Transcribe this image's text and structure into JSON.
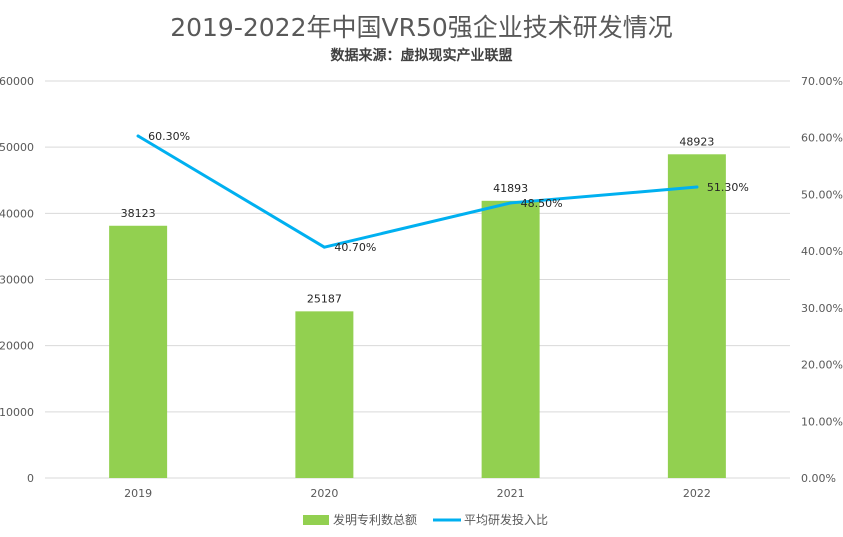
{
  "chart_data": {
    "type": "bar",
    "title": "2019-2022年中国VR50强企业技术研发情况",
    "subtitle": "数据来源：虚拟现实产业联盟",
    "categories": [
      "2019",
      "2020",
      "2021",
      "2022"
    ],
    "series": [
      {
        "name": "发明专利数总额",
        "type": "bar",
        "axis": "left",
        "color": "#92d050",
        "values": [
          38123,
          25187,
          41893,
          48923
        ],
        "labels": [
          "38123",
          "25187",
          "41893",
          "48923"
        ]
      },
      {
        "name": "平均研发投入比",
        "type": "line",
        "axis": "right",
        "color": "#00b0f0",
        "values": [
          60.3,
          40.7,
          48.5,
          51.3
        ],
        "labels": [
          "60.30%",
          "40.70%",
          "48.50%",
          "51.30%"
        ]
      }
    ],
    "y_left": {
      "ylim": [
        0,
        60000
      ],
      "ticks": [
        "0",
        "10000",
        "20000",
        "30000",
        "40000",
        "50000",
        "60000"
      ]
    },
    "y_right": {
      "ylim": [
        0,
        70
      ],
      "ticks": [
        "0.00%",
        "10.00%",
        "20.00%",
        "30.00%",
        "40.00%",
        "50.00%",
        "60.00%",
        "70.00%"
      ]
    },
    "grid": true,
    "legend_position": "bottom"
  }
}
